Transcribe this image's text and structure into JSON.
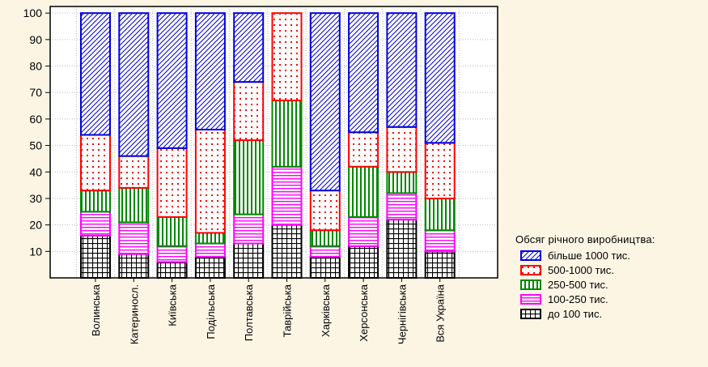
{
  "chart_data": {
    "type": "bar",
    "stacked": true,
    "ylim": [
      0,
      100
    ],
    "yticks": [
      10,
      20,
      30,
      40,
      50,
      60,
      70,
      80,
      90,
      100
    ],
    "categories": [
      "Волинська",
      "Катериносл.",
      "Київська",
      "Подільська",
      "Полтавська",
      "Таврійська",
      "Харківська",
      "Херсонська",
      "Чернігівська",
      "Вся Україна"
    ],
    "legend_title": "Обсяг річного виробництва:",
    "legend_position": "right",
    "series": [
      {
        "name": "до 100 тис.",
        "color": "#000000",
        "pattern": "grid",
        "values": [
          16,
          9,
          6,
          8,
          13,
          20,
          8,
          12,
          22,
          10
        ]
      },
      {
        "name": "100-250 тис.",
        "color": "#ff00ff",
        "pattern": "horizontal",
        "values": [
          9,
          12,
          6,
          5,
          11,
          22,
          4,
          11,
          10,
          8
        ]
      },
      {
        "name": "250-500 тис.",
        "color": "#008800",
        "pattern": "vertical",
        "values": [
          8,
          13,
          11,
          4,
          28,
          25,
          6,
          19,
          8,
          12
        ]
      },
      {
        "name": "500-1000 тис.",
        "color": "#ff0000",
        "pattern": "dots",
        "values": [
          21,
          12,
          26,
          39,
          22,
          33,
          15,
          13,
          17,
          21
        ]
      },
      {
        "name": "більше 1000 тис.",
        "color": "#0000dd",
        "pattern": "diagonal",
        "values": [
          46,
          54,
          51,
          44,
          26,
          0,
          67,
          45,
          43,
          49
        ]
      }
    ],
    "legend_order": [
      "більше 1000 тис.",
      "500-1000 тис.",
      "250-500 тис.",
      "100-250 тис.",
      "до 100 тис."
    ]
  }
}
